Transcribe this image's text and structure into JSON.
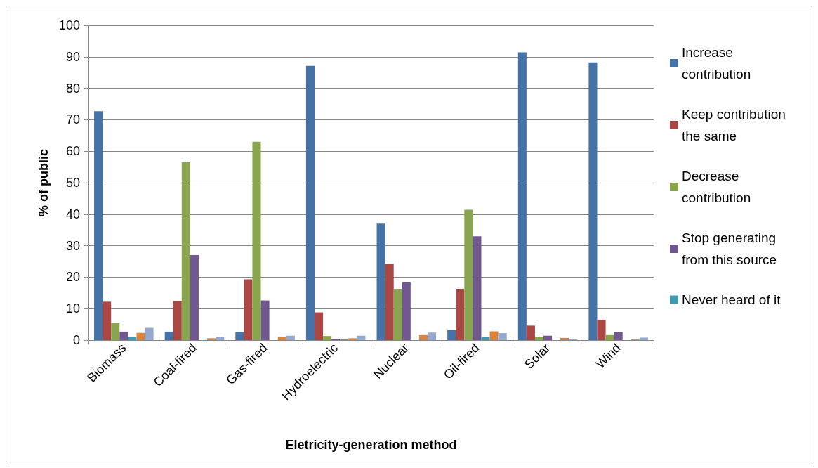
{
  "chart_data": {
    "type": "bar",
    "xlabel": "Eletricity-generation method",
    "ylabel": "% of public",
    "categories": [
      "Biomass",
      "Coal-fired",
      "Gas-fired",
      "Hydroelectric",
      "Nuclear",
      "Oil-fired",
      "Solar",
      "Wind"
    ],
    "series": [
      {
        "name": "Increase contribution",
        "color": "#4572a7",
        "values": [
          72.7,
          2.7,
          2.6,
          87.1,
          37,
          3.2,
          91.4,
          88.2
        ]
      },
      {
        "name": "Keep contribution the same",
        "color": "#aa4643",
        "values": [
          12.2,
          12.4,
          19.3,
          8.8,
          24.2,
          16.3,
          4.6,
          6.5
        ]
      },
      {
        "name": "Decrease contribution",
        "color": "#89a54e",
        "values": [
          5.4,
          56.5,
          63,
          1.3,
          16.3,
          41.4,
          1.1,
          1.6
        ]
      },
      {
        "name": "Stop generating from this source",
        "color": "#71588f",
        "values": [
          2.7,
          27,
          12.6,
          0.4,
          18.4,
          33,
          1.4,
          2.5
        ]
      },
      {
        "name": "Never heard of it",
        "color": "#4198af",
        "values": [
          1,
          null,
          null,
          0.2,
          null,
          1,
          null,
          null
        ]
      },
      {
        "color": "#db843d",
        "values": [
          2.3,
          0.6,
          1,
          0.6,
          1.6,
          2.8,
          0.7,
          0.2
        ]
      },
      {
        "color": "#93a9cf",
        "values": [
          3.9,
          1,
          1.4,
          1.4,
          2.4,
          2.2,
          0.4,
          0.8
        ]
      }
    ],
    "ylim": [
      0,
      100
    ],
    "yticks": [
      0,
      10,
      20,
      30,
      40,
      50,
      60,
      70,
      80,
      90,
      100
    ],
    "grid": "y",
    "legend": "right"
  }
}
